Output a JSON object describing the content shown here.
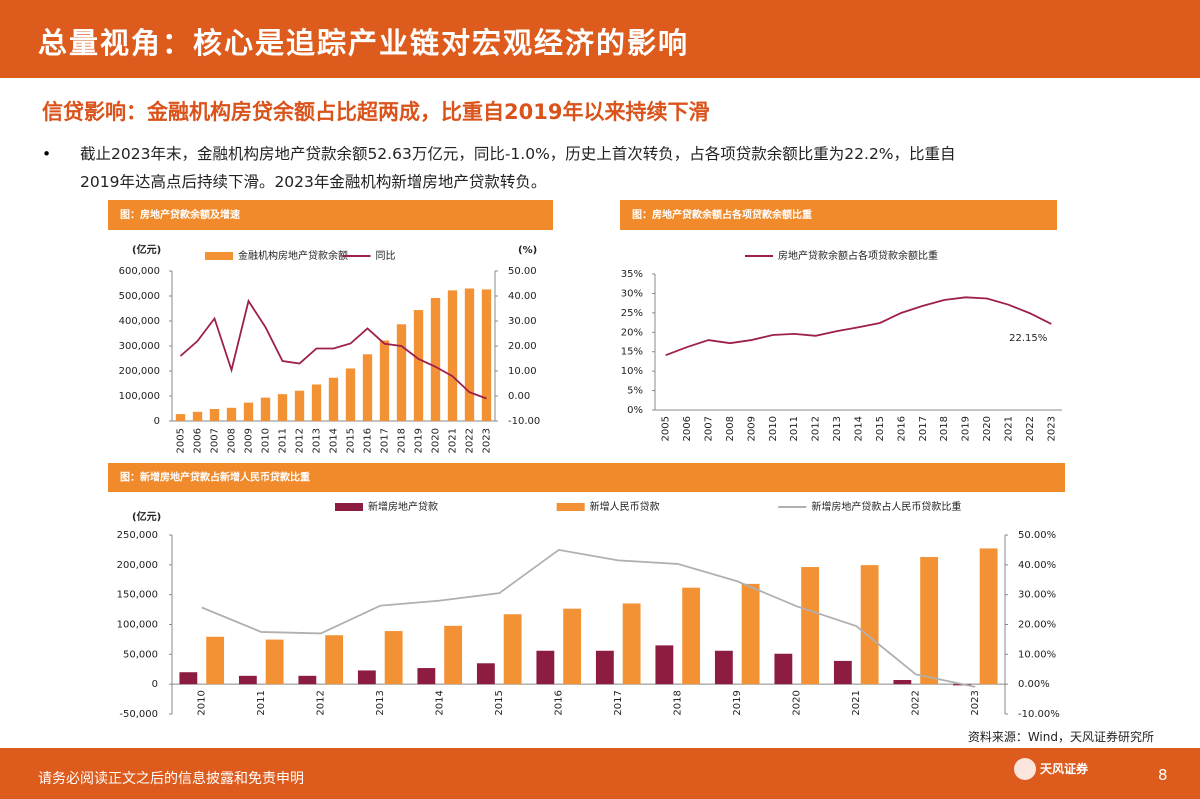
{
  "slide": {
    "title": "总量视角：核心是追踪产业链对宏观经济的影响",
    "subtitle": "信贷影响：金融机构房贷余额占比超两成，比重自2019年以来持续下滑",
    "bullet": "截止2023年末，金融机构房地产贷款余额52.63万亿元，同比-1.0%，历史上首次转负，占各项贷款余额比重为22.2%，比重自2019年达高点后持续下滑。2023年金融机构新增房地产贷款转负。",
    "source": "资料来源：Wind，天风证券研究所",
    "footer": "请务必阅读正文之后的信息披露和免责申明",
    "logo": "天风证券",
    "page": "8"
  },
  "chart_data": [
    {
      "type": "bar",
      "title": "图：房地产贷款余额及增速",
      "y_label": "(亿元)",
      "y2_label": "(%)",
      "categories": [
        "2005",
        "2006",
        "2007",
        "2008",
        "2009",
        "2010",
        "2011",
        "2012",
        "2013",
        "2014",
        "2015",
        "2016",
        "2017",
        "2018",
        "2019",
        "2020",
        "2021",
        "2022",
        "2023"
      ],
      "series": [
        {
          "name": "金融机构房地产贷款余额",
          "type": "bar",
          "color": "#f39234",
          "values": [
            27700,
            36800,
            48000,
            52800,
            73300,
            93500,
            107300,
            121100,
            146100,
            172900,
            210100,
            266800,
            322000,
            386900,
            443800,
            492000,
            522500,
            530000,
            526300
          ]
        },
        {
          "name": "同比",
          "type": "line",
          "axis": "y2",
          "color": "#9e1f4a",
          "values": [
            16,
            22,
            31,
            10.4,
            38,
            27.5,
            14,
            13,
            19,
            19,
            21,
            27,
            20.9,
            20,
            14.8,
            11.7,
            7.9,
            1.5,
            -1.0
          ]
        }
      ],
      "ylim": [
        0,
        600000
      ],
      "yticks": [
        0,
        {
          "value": 100000,
          "label": "100,000"
        },
        {
          "value": 200000,
          "label": "200,000"
        },
        {
          "value": 300000,
          "label": "300,000"
        },
        {
          "value": 400000,
          "label": "400,000"
        },
        {
          "value": 500000,
          "label": "500,000"
        },
        {
          "value": 600000,
          "label": "600,000"
        }
      ],
      "y2lim": [
        -10,
        50
      ],
      "y2ticks": [
        {
          "value": -10,
          "label": "-10.00"
        },
        {
          "value": 0,
          "label": "0.00"
        },
        {
          "value": 10,
          "label": "10.00"
        },
        {
          "value": 20,
          "label": "20.00"
        },
        {
          "value": 30,
          "label": "30.00"
        },
        {
          "value": 40,
          "label": "40.00"
        },
        {
          "value": 50,
          "label": "50.00"
        }
      ]
    },
    {
      "type": "line",
      "title": "图：房地产贷款余额占各项贷款余额比重",
      "categories": [
        "2005",
        "2006",
        "2007",
        "2008",
        "2009",
        "2010",
        "2011",
        "2012",
        "2013",
        "2014",
        "2015",
        "2016",
        "2017",
        "2018",
        "2019",
        "2020",
        "2021",
        "2022",
        "2023"
      ],
      "series": [
        {
          "name": "房地产贷款余额占各项贷款余额比重",
          "type": "line",
          "color": "#9e1f4a",
          "values": [
            14.1,
            16.2,
            18.0,
            17.2,
            18.0,
            19.3,
            19.6,
            19.1,
            20.3,
            21.3,
            22.4,
            25.0,
            26.8,
            28.3,
            29.0,
            28.7,
            27.1,
            24.9,
            22.15
          ]
        }
      ],
      "annotation": "22.15%",
      "ylim": [
        0,
        35
      ],
      "yticks": [
        {
          "value": 0,
          "label": "0%"
        },
        {
          "value": 5,
          "label": "5%"
        },
        {
          "value": 10,
          "label": "10%"
        },
        {
          "value": 15,
          "label": "15%"
        },
        {
          "value": 20,
          "label": "20%"
        },
        {
          "value": 25,
          "label": "25%"
        },
        {
          "value": 30,
          "label": "30%"
        },
        {
          "value": 35,
          "label": "35%"
        }
      ]
    },
    {
      "type": "bar",
      "title": "图：新增房地产贷款占新增人民币贷款比重",
      "y_label": "(亿元)",
      "categories": [
        "2010",
        "2011",
        "2012",
        "2013",
        "2014",
        "2015",
        "2016",
        "2017",
        "2018",
        "2019",
        "2020",
        "2021",
        "2022",
        "2023"
      ],
      "series": [
        {
          "name": "新增房地产贷款",
          "type": "bar",
          "color": "#8c1d40",
          "values": [
            20000,
            14000,
            14000,
            23000,
            27000,
            35000,
            56000,
            56000,
            65000,
            56000,
            51000,
            39000,
            7000,
            -2000
          ]
        },
        {
          "name": "新增人民币贷款",
          "type": "bar",
          "color": "#f39234",
          "values": [
            79500,
            74700,
            82000,
            89000,
            97800,
            117200,
            126500,
            135300,
            161700,
            168100,
            196300,
            199500,
            213100,
            227500
          ]
        },
        {
          "name": "新增房地产贷款占人民币贷款比重",
          "type": "line",
          "axis": "y2",
          "color": "#b0b0b0",
          "values": [
            25.7,
            17.5,
            17.0,
            26.3,
            28.0,
            30.5,
            45.0,
            41.5,
            40.3,
            34.5,
            26.1,
            19.5,
            3.3,
            -0.9
          ]
        }
      ],
      "ylim": [
        -50000,
        250000
      ],
      "yticks": [
        {
          "value": -50000,
          "label": "-50,000"
        },
        0,
        {
          "value": 50000,
          "label": "50,000"
        },
        {
          "value": 100000,
          "label": "100,000"
        },
        {
          "value": 150000,
          "label": "150,000"
        },
        {
          "value": 200000,
          "label": "200,000"
        },
        {
          "value": 250000,
          "label": "250,000"
        }
      ],
      "y2lim": [
        -10,
        50
      ],
      "y2ticks": [
        {
          "value": -10,
          "label": "-10.00%"
        },
        {
          "value": 0,
          "label": "0.00%"
        },
        {
          "value": 10,
          "label": "10.00%"
        },
        {
          "value": 20,
          "label": "20.00%"
        },
        {
          "value": 30,
          "label": "30.00%"
        },
        {
          "value": 40,
          "label": "40.00%"
        },
        {
          "value": 50,
          "label": "50.00%"
        }
      ]
    }
  ]
}
